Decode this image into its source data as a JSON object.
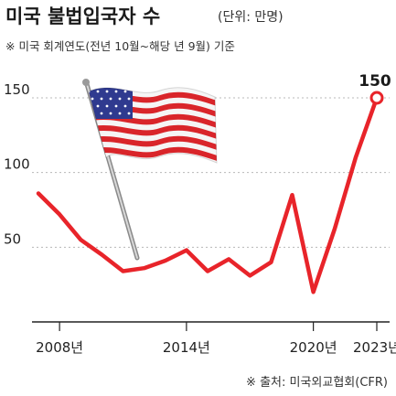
{
  "header": {
    "title": "미국 불법입국자 수",
    "unit": "(단위: 만명)",
    "subtitle": "※ 미국 회계연도(전년 10월~해당 년 9월) 기준"
  },
  "source": "※ 출처: 미국외교협회(CFR)",
  "colors": {
    "line": "#e8242a",
    "grid": "#b8b8b8",
    "axis": "#222222",
    "flag_red": "#d9252a",
    "flag_blue": "#2f3a8f"
  },
  "chart_data": {
    "type": "line",
    "title": "미국 불법입국자 수",
    "subtitle": "※ 미국 회계연도(전년 10월~해당 년 9월) 기준",
    "unit": "(단위: 만명)",
    "x": [
      2007,
      2008,
      2009,
      2010,
      2011,
      2012,
      2013,
      2014,
      2015,
      2016,
      2017,
      2018,
      2019,
      2020,
      2021,
      2022,
      2023
    ],
    "y_ticks": [
      50,
      100,
      150
    ],
    "x_ticks": [
      {
        "value": 2008,
        "label": "2008년"
      },
      {
        "value": 2014,
        "label": "2014년"
      },
      {
        "value": 2020,
        "label": "2020년"
      },
      {
        "value": 2023,
        "label": "2023년"
      }
    ],
    "series": [
      {
        "values": [
          86,
          72,
          55,
          45,
          34,
          36,
          41,
          48,
          34,
          42,
          31,
          40,
          85,
          20,
          62,
          110,
          150
        ]
      }
    ],
    "annotations": [
      {
        "x": 2023,
        "label": "150"
      }
    ],
    "ylim": [
      0,
      170
    ],
    "xlim": [
      2006.9,
      2023.2
    ],
    "grid": "horizontal dashed"
  }
}
